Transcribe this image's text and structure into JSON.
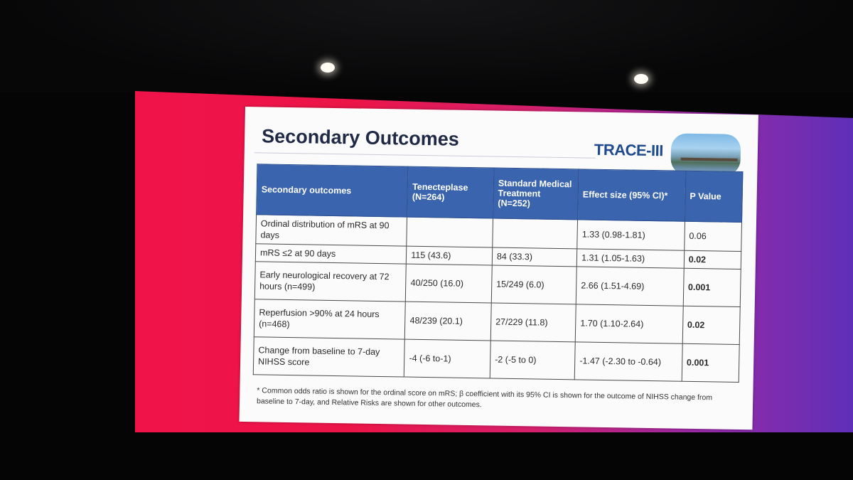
{
  "slide": {
    "title": "Secondary Outcomes",
    "logo_text": "TRACE-III"
  },
  "table": {
    "headers": [
      "Secondary outcomes",
      "Tenecteplase (N=264)",
      "Standard Medical Treatment (N=252)",
      "Effect size (95% CI)*",
      "P Value"
    ],
    "rows": [
      {
        "outcome": "Ordinal distribution of mRS at 90 days",
        "tenecteplase": "",
        "standard": "",
        "effect": "1.33 (0.98-1.81)",
        "p": "0.06",
        "p_bold": false
      },
      {
        "outcome": "mRS ≤2 at 90 days",
        "tenecteplase": "115 (43.6)",
        "standard": "84 (33.3)",
        "effect": "1.31 (1.05-1.63)",
        "p": "0.02",
        "p_bold": true
      },
      {
        "outcome": "Early neurological recovery at 72 hours (n=499)",
        "tenecteplase": "40/250 (16.0)",
        "standard": "15/249 (6.0)",
        "effect": "2.66 (1.51-4.69)",
        "p": "0.001",
        "p_bold": true
      },
      {
        "outcome": "Reperfusion >90% at 24 hours (n=468)",
        "tenecteplase": "48/239 (20.1)",
        "standard": "27/229 (11.8)",
        "effect": "1.70 (1.10-2.64)",
        "p": "0.02",
        "p_bold": true
      },
      {
        "outcome": "Change from baseline to 7-day NIHSS score",
        "tenecteplase": "-4 (-6 to-1)",
        "standard": "-2 (-5 to 0)",
        "effect": "-1.47 (-2.30 to -0.64)",
        "p": "0.001",
        "p_bold": true
      }
    ]
  },
  "footnote": "* Common odds ratio is shown for the ordinal score on mRS; β coefficient with its 95% CI is shown for the outcome of NIHSS change from baseline to 7-day, and Relative Risks are shown for other outcomes."
}
